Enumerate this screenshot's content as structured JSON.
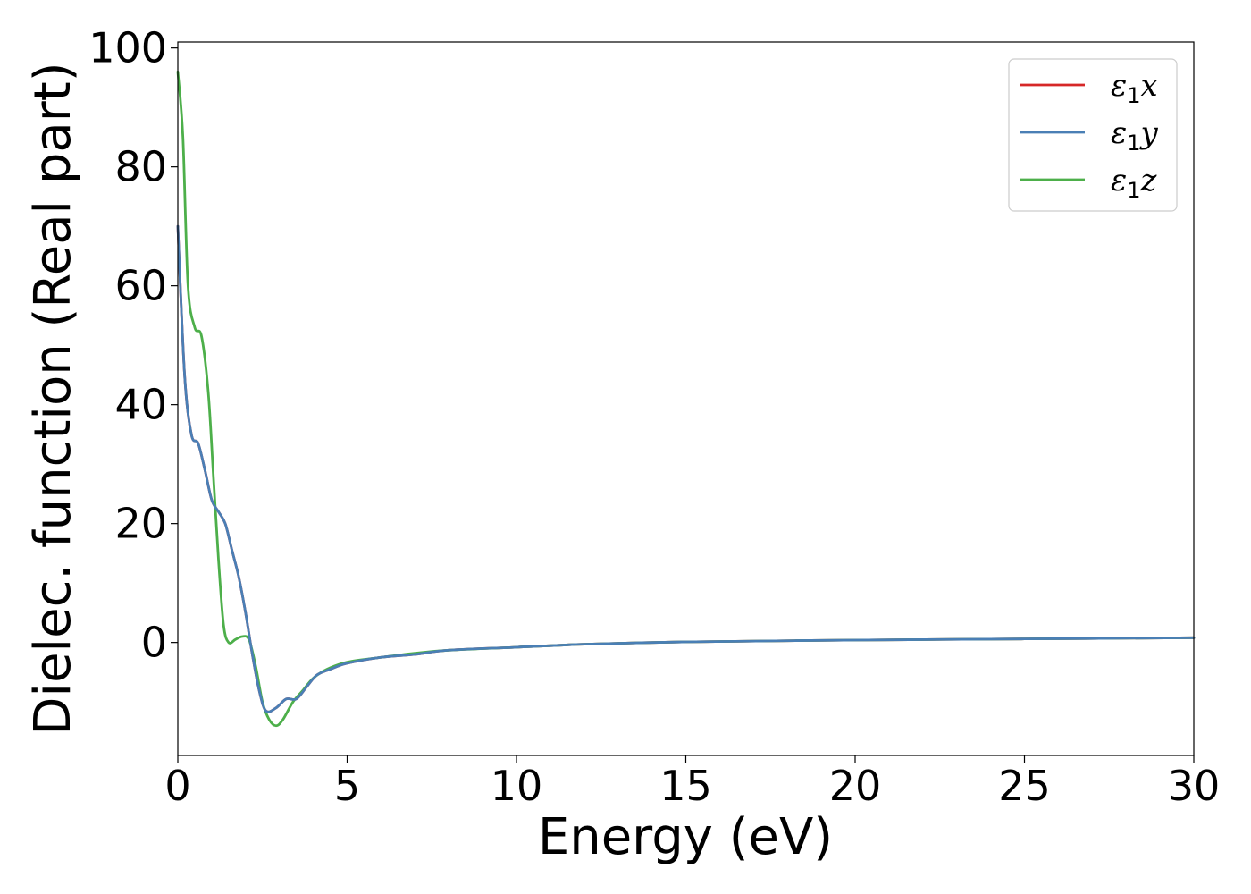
{
  "chart_data": {
    "type": "line",
    "title": "",
    "xlabel": "Energy (eV)",
    "ylabel": "Dielec. function (Real part)",
    "xlim": [
      0,
      30
    ],
    "ylim": [
      -19,
      101
    ],
    "xticks": [
      0,
      5,
      10,
      15,
      20,
      25,
      30
    ],
    "yticks": [
      0,
      20,
      40,
      60,
      80,
      100
    ],
    "grid": false,
    "legend_position": "top-right",
    "series": [
      {
        "name": "ε₁x",
        "legend": {
          "symbol": "ε",
          "sub": "1",
          "axis": "x"
        },
        "color": "#d62728",
        "x": [
          0,
          0.2,
          0.4,
          0.6,
          0.8,
          1.0,
          1.2,
          1.4,
          1.6,
          1.8,
          2.0,
          2.2,
          2.4,
          2.6,
          2.9,
          3.2,
          3.5,
          3.8,
          4.1,
          4.5,
          5.0,
          6.0,
          7.0,
          8.0,
          10.0,
          12.0,
          15.0,
          20.0,
          25.0,
          30.0
        ],
        "y": [
          70,
          45,
          35,
          33.5,
          29,
          24,
          22,
          20,
          15.5,
          11,
          5,
          -2,
          -8,
          -11.5,
          -11,
          -9.5,
          -9.5,
          -7.5,
          -5.5,
          -4.5,
          -3.5,
          -2.5,
          -2,
          -1.3,
          -0.8,
          -0.3,
          0.1,
          0.4,
          0.6,
          0.8
        ]
      },
      {
        "name": "ε₁y",
        "legend": {
          "symbol": "ε",
          "sub": "1",
          "axis": "y"
        },
        "color": "#4a7fb5",
        "x": [
          0,
          0.2,
          0.4,
          0.6,
          0.8,
          1.0,
          1.2,
          1.4,
          1.6,
          1.8,
          2.0,
          2.2,
          2.4,
          2.6,
          2.9,
          3.2,
          3.5,
          3.8,
          4.1,
          4.5,
          5.0,
          6.0,
          7.0,
          8.0,
          10.0,
          12.0,
          15.0,
          20.0,
          25.0,
          30.0
        ],
        "y": [
          70,
          45,
          35,
          33.5,
          29,
          24,
          22,
          20,
          15.5,
          11,
          5,
          -2,
          -8,
          -11.5,
          -11,
          -9.5,
          -9.5,
          -7.5,
          -5.5,
          -4.5,
          -3.5,
          -2.5,
          -2,
          -1.3,
          -0.8,
          -0.3,
          0.1,
          0.4,
          0.6,
          0.8
        ]
      },
      {
        "name": "ε₁z",
        "legend": {
          "symbol": "ε",
          "sub": "1",
          "axis": "z"
        },
        "color": "#4daf4a",
        "x": [
          0,
          0.15,
          0.3,
          0.5,
          0.7,
          0.9,
          1.05,
          1.2,
          1.35,
          1.5,
          1.7,
          1.9,
          2.1,
          2.3,
          2.5,
          2.7,
          2.9,
          3.1,
          3.4,
          3.7,
          4.0,
          4.4,
          5.0,
          6.0,
          7.0,
          8.0,
          10.0,
          12.0,
          15.0,
          20.0,
          25.0,
          30.0
        ],
        "y": [
          96,
          85,
          60,
          53,
          51.5,
          42,
          28,
          14,
          3,
          0,
          0.5,
          1,
          0.5,
          -4,
          -10,
          -13,
          -14,
          -13,
          -10,
          -8,
          -6,
          -4.5,
          -3.3,
          -2.5,
          -1.8,
          -1.3,
          -0.8,
          -0.3,
          0.1,
          0.4,
          0.6,
          0.8
        ]
      }
    ]
  }
}
